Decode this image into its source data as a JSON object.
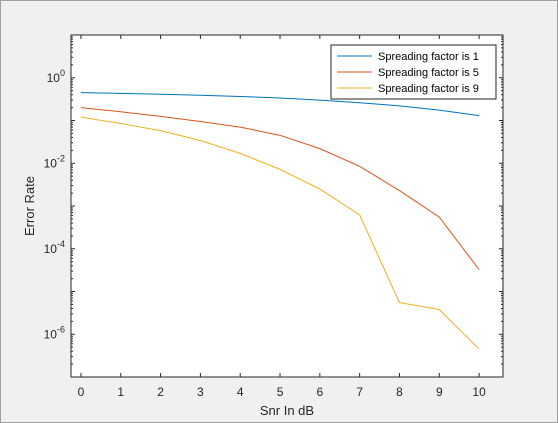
{
  "chart_data": {
    "type": "line",
    "xlabel": "Snr In dB",
    "ylabel": "Error Rate",
    "yscale": "log",
    "xlim": [
      -0.25,
      10.6
    ],
    "ylim": [
      1e-07,
      10
    ],
    "grid": false,
    "legend_position": "top-right",
    "x_ticks": [
      "0",
      "1",
      "2",
      "3",
      "4",
      "5",
      "6",
      "7",
      "8",
      "9",
      "10"
    ],
    "y_ticks": [
      {
        "value": 1e-06,
        "base": "10",
        "exp": "-6"
      },
      {
        "value": 0.0001,
        "base": "10",
        "exp": "-4"
      },
      {
        "value": 0.01,
        "base": "10",
        "exp": "-2"
      },
      {
        "value": 1,
        "base": "10",
        "exp": "0"
      }
    ],
    "x": [
      0,
      1,
      2,
      3,
      4,
      5,
      6,
      7,
      8,
      9,
      10
    ],
    "series": [
      {
        "name": "Spreading factor is 1",
        "color": "#0072bd",
        "values": [
          0.45,
          0.43,
          0.41,
          0.39,
          0.365,
          0.335,
          0.3,
          0.26,
          0.22,
          0.175,
          0.13
        ]
      },
      {
        "name": "Spreading factor is 5",
        "color": "#d95319",
        "values": [
          0.2,
          0.16,
          0.125,
          0.095,
          0.07,
          0.045,
          0.022,
          0.0085,
          0.0023,
          0.00055,
          3.25e-05
        ]
      },
      {
        "name": "Spreading factor is 9",
        "color": "#edb120",
        "values": [
          0.12,
          0.085,
          0.058,
          0.034,
          0.017,
          0.0072,
          0.0025,
          0.00062,
          5.5e-06,
          3.8e-06,
          4.5e-07
        ]
      }
    ]
  }
}
